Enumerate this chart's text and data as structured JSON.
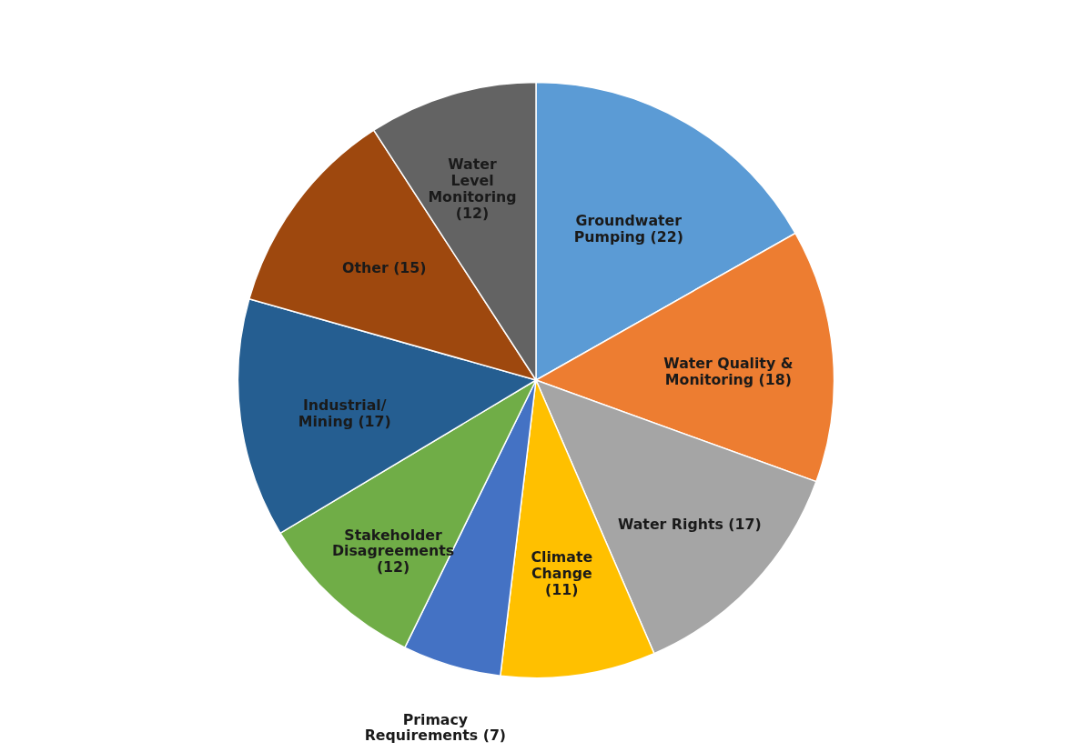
{
  "chart_data": {
    "type": "pie",
    "categories": [
      "Groundwater Pumping",
      "Water Quality & Monitoring",
      "Water Rights",
      "Climate Change",
      "Primacy Requirements",
      "Stakeholder Disagreements",
      "Industrial/ Mining",
      "Other",
      "Water Level Monitoring"
    ],
    "values": [
      22,
      18,
      17,
      11,
      7,
      12,
      17,
      15,
      12
    ],
    "value_labels": [
      "(22)",
      "(18)",
      "(17)",
      "(11)",
      "(7)",
      "(12)",
      "(17)",
      "(15)",
      "(12)"
    ],
    "colors": [
      "#5b9bd5",
      "#ed7d31",
      "#a5a5a5",
      "#ffc000",
      "#4472c4",
      "#70ad47",
      "#255e91",
      "#9e480e",
      "#636363"
    ]
  }
}
